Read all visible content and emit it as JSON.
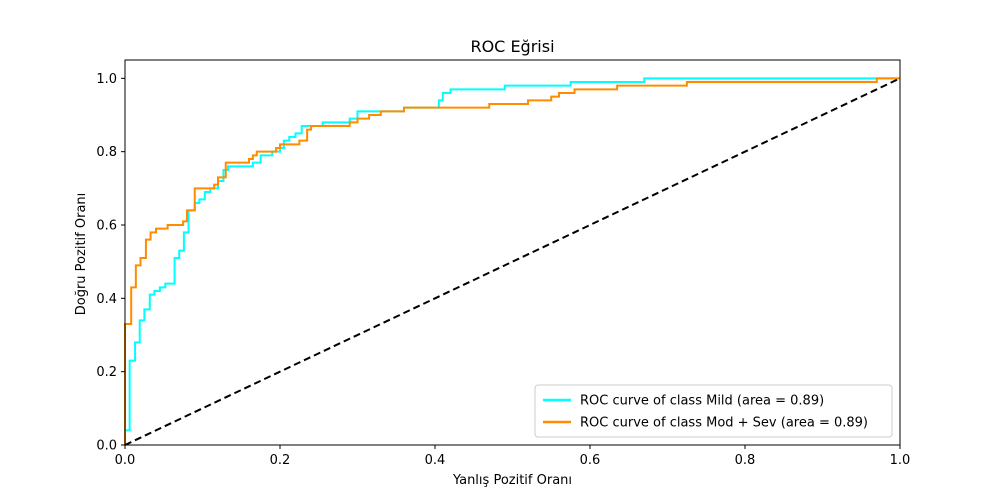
{
  "chart_data": {
    "type": "line",
    "title": "ROC Eğrisi",
    "xlabel": "Yanlış Pozitif Oranı",
    "ylabel": "Doğru Pozitif Oranı",
    "xlim": [
      0.0,
      1.0
    ],
    "ylim": [
      0.0,
      1.05
    ],
    "xticks": [
      0.0,
      0.2,
      0.4,
      0.6,
      0.8,
      1.0
    ],
    "xtick_labels": [
      "0.0",
      "0.2",
      "0.4",
      "0.6",
      "0.8",
      "1.0"
    ],
    "yticks": [
      0.0,
      0.2,
      0.4,
      0.6,
      0.8,
      1.0
    ],
    "ytick_labels": [
      "0.0",
      "0.2",
      "0.4",
      "0.6",
      "0.8",
      "1.0"
    ],
    "grid": false,
    "legend_position": "lower-right",
    "series": [
      {
        "name": "ROC curve of class Mild (area = 0.89)",
        "color": "#00ffff",
        "style": "solid",
        "points": [
          [
            0,
            0
          ],
          [
            0,
            0.04
          ],
          [
            0.006,
            0.04
          ],
          [
            0.006,
            0.23
          ],
          [
            0.013,
            0.23
          ],
          [
            0.013,
            0.28
          ],
          [
            0.019,
            0.28
          ],
          [
            0.019,
            0.34
          ],
          [
            0.025,
            0.34
          ],
          [
            0.025,
            0.37
          ],
          [
            0.032,
            0.37
          ],
          [
            0.032,
            0.41
          ],
          [
            0.038,
            0.41
          ],
          [
            0.038,
            0.42
          ],
          [
            0.045,
            0.42
          ],
          [
            0.045,
            0.43
          ],
          [
            0.052,
            0.43
          ],
          [
            0.052,
            0.44
          ],
          [
            0.064,
            0.44
          ],
          [
            0.064,
            0.51
          ],
          [
            0.07,
            0.51
          ],
          [
            0.07,
            0.53
          ],
          [
            0.076,
            0.53
          ],
          [
            0.076,
            0.58
          ],
          [
            0.082,
            0.58
          ],
          [
            0.082,
            0.64
          ],
          [
            0.09,
            0.64
          ],
          [
            0.09,
            0.66
          ],
          [
            0.096,
            0.66
          ],
          [
            0.096,
            0.67
          ],
          [
            0.103,
            0.67
          ],
          [
            0.103,
            0.69
          ],
          [
            0.11,
            0.69
          ],
          [
            0.11,
            0.7
          ],
          [
            0.12,
            0.7
          ],
          [
            0.12,
            0.72
          ],
          [
            0.127,
            0.72
          ],
          [
            0.127,
            0.75
          ],
          [
            0.133,
            0.75
          ],
          [
            0.133,
            0.76
          ],
          [
            0.165,
            0.76
          ],
          [
            0.165,
            0.77
          ],
          [
            0.175,
            0.77
          ],
          [
            0.175,
            0.79
          ],
          [
            0.19,
            0.79
          ],
          [
            0.19,
            0.8
          ],
          [
            0.2,
            0.8
          ],
          [
            0.2,
            0.81
          ],
          [
            0.205,
            0.81
          ],
          [
            0.205,
            0.83
          ],
          [
            0.212,
            0.83
          ],
          [
            0.212,
            0.84
          ],
          [
            0.22,
            0.84
          ],
          [
            0.22,
            0.85
          ],
          [
            0.228,
            0.85
          ],
          [
            0.228,
            0.87
          ],
          [
            0.255,
            0.87
          ],
          [
            0.255,
            0.88
          ],
          [
            0.29,
            0.88
          ],
          [
            0.29,
            0.89
          ],
          [
            0.3,
            0.89
          ],
          [
            0.3,
            0.91
          ],
          [
            0.36,
            0.91
          ],
          [
            0.36,
            0.92
          ],
          [
            0.405,
            0.92
          ],
          [
            0.405,
            0.94
          ],
          [
            0.41,
            0.94
          ],
          [
            0.41,
            0.96
          ],
          [
            0.42,
            0.96
          ],
          [
            0.42,
            0.97
          ],
          [
            0.44,
            0.97
          ],
          [
            0.44,
            0.97
          ],
          [
            0.49,
            0.97
          ],
          [
            0.49,
            0.98
          ],
          [
            0.51,
            0.98
          ],
          [
            0.51,
            0.98
          ],
          [
            0.575,
            0.98
          ],
          [
            0.575,
            0.99
          ],
          [
            0.67,
            0.99
          ],
          [
            0.67,
            1.0
          ],
          [
            0.96,
            1.0
          ],
          [
            0.96,
            1.0
          ],
          [
            1.0,
            1.0
          ]
        ]
      },
      {
        "name": "ROC curve of class Mod + Sev (area = 0.89)",
        "color": "#ff8c00",
        "style": "solid",
        "points": [
          [
            0,
            0
          ],
          [
            0,
            0.33
          ],
          [
            0.008,
            0.33
          ],
          [
            0.008,
            0.43
          ],
          [
            0.014,
            0.43
          ],
          [
            0.014,
            0.49
          ],
          [
            0.02,
            0.49
          ],
          [
            0.02,
            0.51
          ],
          [
            0.027,
            0.51
          ],
          [
            0.027,
            0.56
          ],
          [
            0.033,
            0.56
          ],
          [
            0.033,
            0.58
          ],
          [
            0.04,
            0.58
          ],
          [
            0.04,
            0.59
          ],
          [
            0.055,
            0.59
          ],
          [
            0.055,
            0.6
          ],
          [
            0.075,
            0.6
          ],
          [
            0.075,
            0.61
          ],
          [
            0.08,
            0.61
          ],
          [
            0.08,
            0.64
          ],
          [
            0.09,
            0.64
          ],
          [
            0.09,
            0.7
          ],
          [
            0.1,
            0.7
          ],
          [
            0.1,
            0.7
          ],
          [
            0.115,
            0.7
          ],
          [
            0.115,
            0.71
          ],
          [
            0.12,
            0.71
          ],
          [
            0.12,
            0.73
          ],
          [
            0.13,
            0.73
          ],
          [
            0.13,
            0.77
          ],
          [
            0.16,
            0.77
          ],
          [
            0.16,
            0.78
          ],
          [
            0.165,
            0.78
          ],
          [
            0.165,
            0.79
          ],
          [
            0.17,
            0.79
          ],
          [
            0.17,
            0.8
          ],
          [
            0.195,
            0.8
          ],
          [
            0.195,
            0.81
          ],
          [
            0.2,
            0.81
          ],
          [
            0.2,
            0.82
          ],
          [
            0.225,
            0.82
          ],
          [
            0.225,
            0.83
          ],
          [
            0.235,
            0.83
          ],
          [
            0.235,
            0.86
          ],
          [
            0.24,
            0.86
          ],
          [
            0.24,
            0.87
          ],
          [
            0.29,
            0.87
          ],
          [
            0.29,
            0.88
          ],
          [
            0.3,
            0.88
          ],
          [
            0.3,
            0.89
          ],
          [
            0.315,
            0.89
          ],
          [
            0.315,
            0.9
          ],
          [
            0.33,
            0.9
          ],
          [
            0.33,
            0.91
          ],
          [
            0.36,
            0.91
          ],
          [
            0.36,
            0.92
          ],
          [
            0.47,
            0.92
          ],
          [
            0.47,
            0.93
          ],
          [
            0.52,
            0.93
          ],
          [
            0.52,
            0.94
          ],
          [
            0.55,
            0.94
          ],
          [
            0.55,
            0.95
          ],
          [
            0.56,
            0.95
          ],
          [
            0.56,
            0.96
          ],
          [
            0.58,
            0.96
          ],
          [
            0.58,
            0.97
          ],
          [
            0.635,
            0.97
          ],
          [
            0.635,
            0.98
          ],
          [
            0.725,
            0.98
          ],
          [
            0.725,
            0.99
          ],
          [
            0.97,
            0.99
          ],
          [
            0.97,
            1.0
          ],
          [
            1.0,
            1.0
          ]
        ]
      },
      {
        "name": "",
        "color": "#000000",
        "style": "dashed",
        "points": [
          [
            0,
            0
          ],
          [
            1,
            1
          ]
        ]
      }
    ]
  }
}
